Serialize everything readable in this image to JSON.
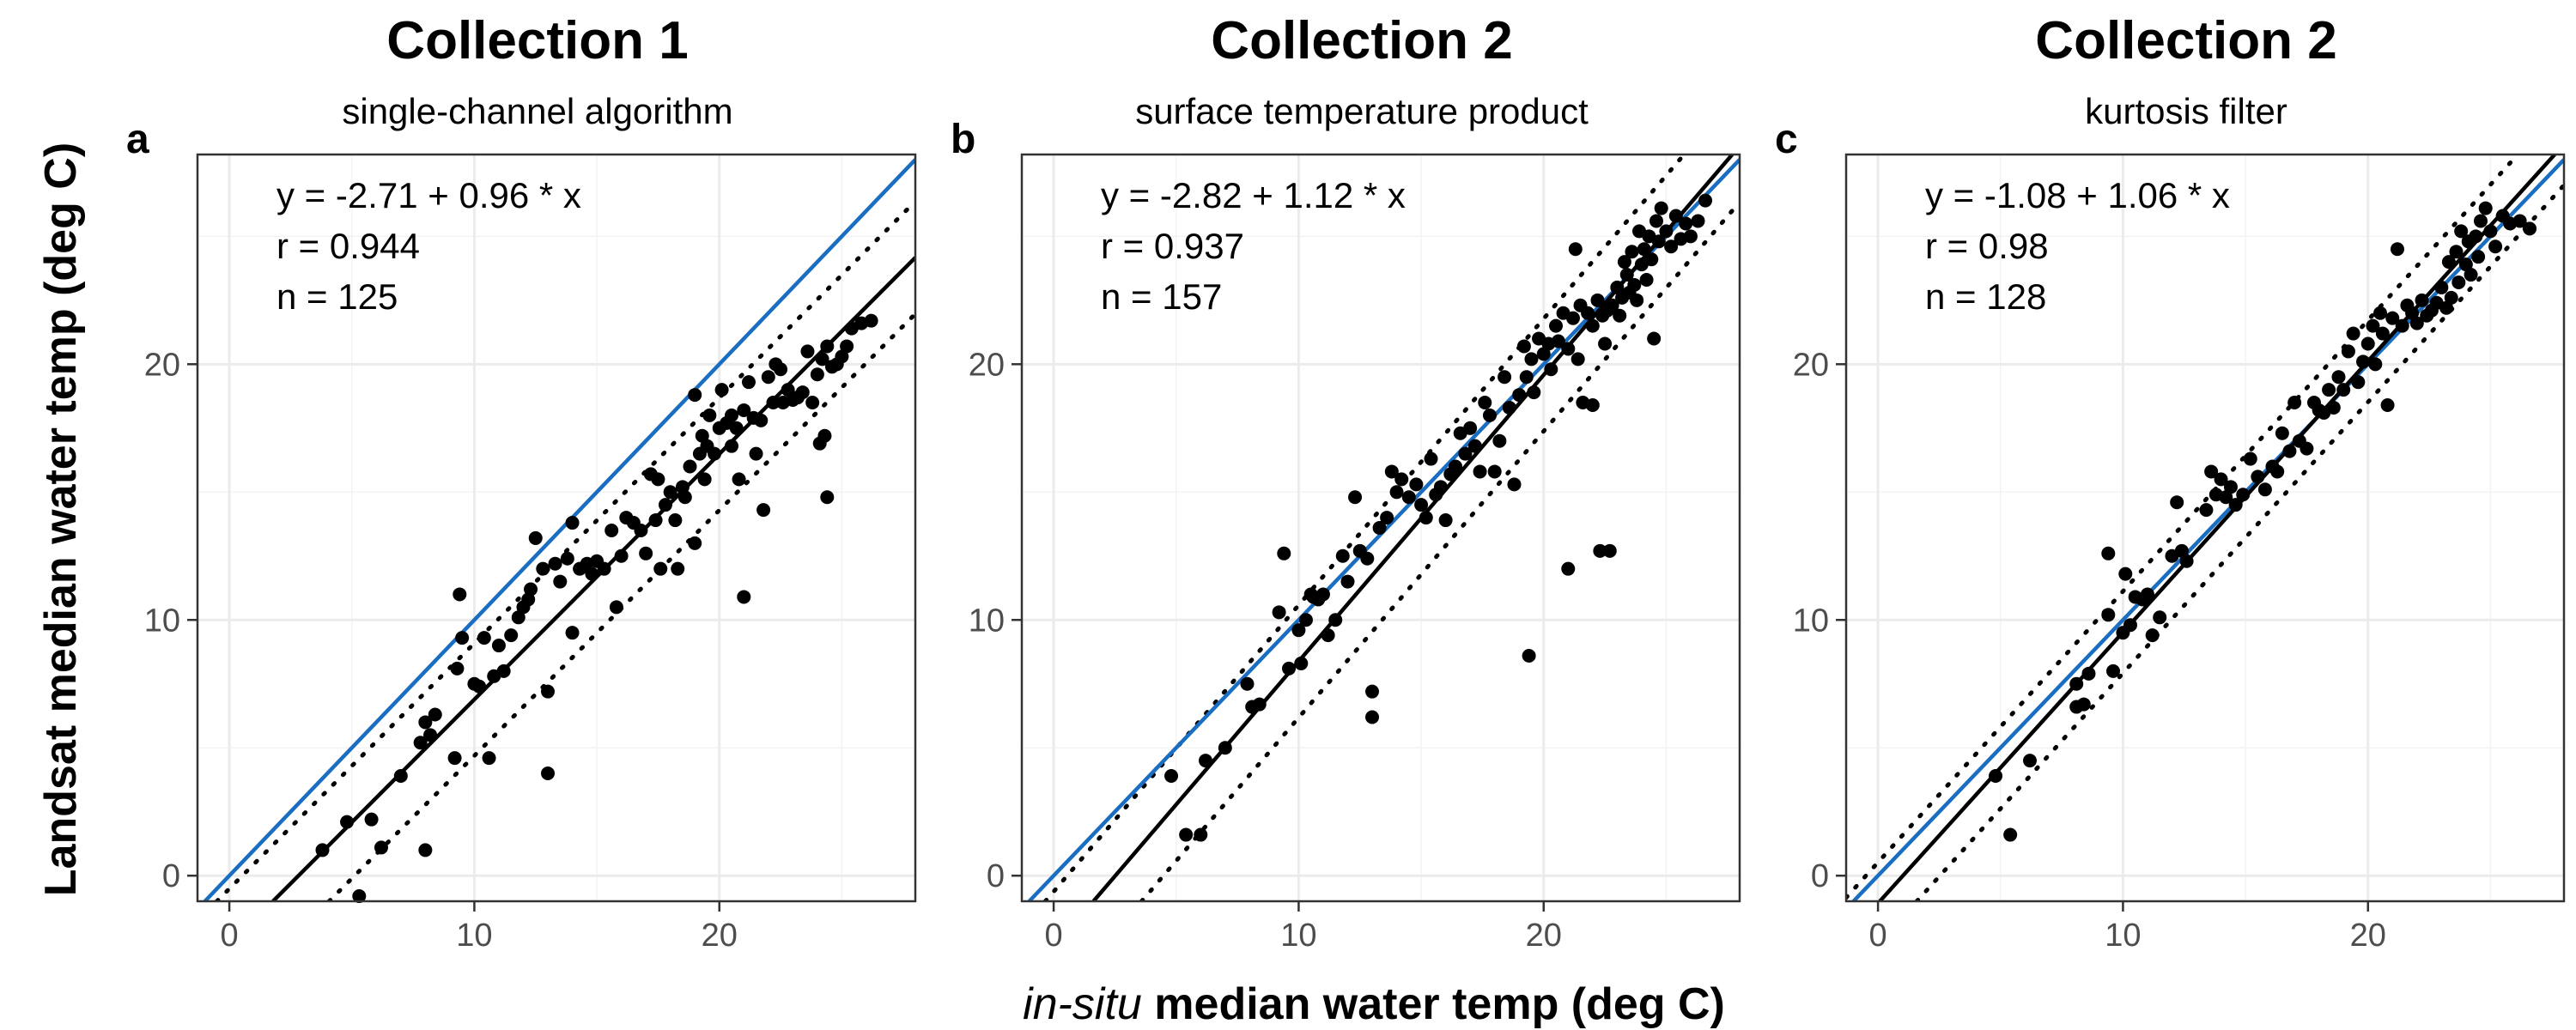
{
  "figure": {
    "xlabel_italic": "in-situ",
    "xlabel_rest": " median water temp (deg C)",
    "ylabel": "Landsat median water temp (deg C)"
  },
  "colors": {
    "identity": "#1a6ec2",
    "fit": "#000000",
    "points": "#000000",
    "grid": "#ebebeb"
  },
  "chart_data": [
    {
      "type": "scatter",
      "title": "Collection 1",
      "subtitle": "single-channel algorithm",
      "panel_label": "a",
      "equation": "y = -2.71 + 0.96 * x",
      "r_text": "r = 0.944",
      "n_text": "n = 125",
      "intercept": -2.71,
      "slope": 0.96,
      "band": 2.2,
      "xlim": [
        -1.3,
        28
      ],
      "ylim": [
        -1,
        28.2
      ],
      "xticks": [
        0,
        10,
        20
      ],
      "yticks": [
        0,
        10,
        20
      ],
      "points": [
        [
          3.8,
          1.0
        ],
        [
          4.8,
          2.1
        ],
        [
          5.3,
          -0.8
        ],
        [
          5.8,
          2.2
        ],
        [
          6.2,
          1.1
        ],
        [
          7.0,
          3.9
        ],
        [
          7.8,
          5.2
        ],
        [
          8.0,
          6.0
        ],
        [
          8.2,
          5.5
        ],
        [
          8.0,
          1.0
        ],
        [
          8.4,
          6.3
        ],
        [
          9.2,
          4.6
        ],
        [
          9.3,
          8.1
        ],
        [
          9.5,
          9.3
        ],
        [
          9.4,
          11.0
        ],
        [
          10.0,
          7.5
        ],
        [
          10.2,
          7.4
        ],
        [
          10.4,
          9.3
        ],
        [
          10.6,
          4.6
        ],
        [
          10.8,
          7.8
        ],
        [
          11.0,
          9.0
        ],
        [
          11.2,
          8.0
        ],
        [
          11.5,
          9.4
        ],
        [
          11.8,
          10.1
        ],
        [
          12.0,
          10.5
        ],
        [
          12.2,
          10.8
        ],
        [
          12.3,
          11.2
        ],
        [
          12.5,
          13.2
        ],
        [
          12.8,
          12.0
        ],
        [
          13.0,
          7.2
        ],
        [
          13.0,
          4.0
        ],
        [
          13.3,
          12.2
        ],
        [
          13.5,
          11.5
        ],
        [
          13.8,
          12.4
        ],
        [
          14.0,
          9.5
        ],
        [
          14.0,
          13.8
        ],
        [
          14.3,
          12.0
        ],
        [
          14.6,
          12.2
        ],
        [
          14.8,
          11.8
        ],
        [
          15.0,
          12.3
        ],
        [
          15.3,
          12.0
        ],
        [
          15.6,
          13.5
        ],
        [
          15.8,
          10.5
        ],
        [
          16.0,
          12.5
        ],
        [
          16.2,
          14.0
        ],
        [
          16.5,
          13.8
        ],
        [
          16.8,
          13.5
        ],
        [
          17.0,
          12.6
        ],
        [
          17.2,
          15.7
        ],
        [
          17.4,
          13.9
        ],
        [
          17.5,
          15.5
        ],
        [
          17.6,
          12.0
        ],
        [
          17.8,
          14.5
        ],
        [
          18.0,
          15.0
        ],
        [
          18.2,
          13.9
        ],
        [
          18.3,
          12.0
        ],
        [
          18.5,
          15.2
        ],
        [
          18.6,
          14.8
        ],
        [
          18.8,
          16.0
        ],
        [
          19.0,
          18.8
        ],
        [
          19.0,
          13.0
        ],
        [
          19.2,
          16.5
        ],
        [
          19.3,
          17.2
        ],
        [
          19.4,
          15.5
        ],
        [
          19.5,
          16.8
        ],
        [
          19.6,
          18.0
        ],
        [
          19.8,
          16.5
        ],
        [
          20.0,
          17.5
        ],
        [
          20.1,
          19.0
        ],
        [
          20.3,
          17.7
        ],
        [
          20.5,
          18.0
        ],
        [
          20.5,
          16.8
        ],
        [
          20.7,
          17.5
        ],
        [
          20.8,
          15.5
        ],
        [
          21.0,
          18.2
        ],
        [
          21.0,
          10.9
        ],
        [
          21.2,
          19.3
        ],
        [
          21.4,
          17.9
        ],
        [
          21.5,
          16.5
        ],
        [
          21.7,
          17.8
        ],
        [
          21.8,
          14.3
        ],
        [
          22.0,
          19.5
        ],
        [
          22.2,
          18.5
        ],
        [
          22.3,
          20.0
        ],
        [
          22.5,
          19.8
        ],
        [
          22.6,
          18.5
        ],
        [
          22.8,
          19.0
        ],
        [
          23.0,
          18.6
        ],
        [
          23.2,
          18.7
        ],
        [
          23.4,
          18.9
        ],
        [
          23.6,
          20.5
        ],
        [
          23.8,
          18.5
        ],
        [
          24.0,
          19.6
        ],
        [
          24.1,
          16.9
        ],
        [
          24.2,
          20.2
        ],
        [
          24.3,
          17.2
        ],
        [
          24.4,
          20.7
        ],
        [
          24.4,
          14.8
        ],
        [
          24.6,
          19.9
        ],
        [
          24.8,
          20.0
        ],
        [
          25.0,
          20.3
        ],
        [
          25.2,
          20.7
        ],
        [
          25.4,
          21.4
        ],
        [
          25.8,
          21.6
        ],
        [
          26.2,
          21.7
        ]
      ]
    },
    {
      "type": "scatter",
      "title": "Collection 2",
      "subtitle": "surface temperature product",
      "panel_label": "b",
      "equation": "y = -2.82 + 1.12 * x",
      "r_text": "r = 0.937",
      "n_text": "n = 157",
      "intercept": -2.82,
      "slope": 1.12,
      "band": 2.2,
      "xlim": [
        -1.3,
        28
      ],
      "ylim": [
        -1,
        28.2
      ],
      "xticks": [
        0,
        10,
        20
      ],
      "yticks": [
        0,
        10,
        20
      ],
      "points": [
        [
          4.8,
          3.9
        ],
        [
          5.4,
          1.6
        ],
        [
          6.0,
          1.6
        ],
        [
          6.2,
          4.5
        ],
        [
          7.0,
          5.0
        ],
        [
          7.9,
          7.5
        ],
        [
          8.1,
          6.6
        ],
        [
          8.4,
          6.7
        ],
        [
          9.2,
          10.3
        ],
        [
          9.4,
          12.6
        ],
        [
          9.6,
          8.1
        ],
        [
          10.0,
          9.6
        ],
        [
          10.1,
          8.3
        ],
        [
          10.3,
          10.0
        ],
        [
          10.5,
          11.0
        ],
        [
          10.6,
          10.9
        ],
        [
          10.8,
          10.8
        ],
        [
          11.0,
          11.0
        ],
        [
          11.2,
          9.4
        ],
        [
          11.5,
          10.0
        ],
        [
          11.8,
          12.5
        ],
        [
          12.0,
          11.5
        ],
        [
          12.3,
          14.8
        ],
        [
          12.5,
          12.7
        ],
        [
          12.8,
          12.4
        ],
        [
          13.0,
          7.2
        ],
        [
          13.0,
          6.2
        ],
        [
          13.3,
          13.6
        ],
        [
          13.6,
          14.0
        ],
        [
          13.8,
          15.8
        ],
        [
          14.0,
          15.0
        ],
        [
          14.2,
          15.5
        ],
        [
          14.5,
          14.8
        ],
        [
          14.8,
          15.3
        ],
        [
          15.0,
          14.5
        ],
        [
          15.2,
          14.0
        ],
        [
          15.4,
          16.3
        ],
        [
          15.6,
          14.9
        ],
        [
          15.8,
          15.2
        ],
        [
          16.0,
          13.9
        ],
        [
          16.2,
          15.7
        ],
        [
          16.4,
          16.0
        ],
        [
          16.6,
          17.3
        ],
        [
          16.8,
          16.5
        ],
        [
          17.0,
          17.5
        ],
        [
          17.2,
          16.8
        ],
        [
          17.4,
          15.8
        ],
        [
          17.6,
          18.5
        ],
        [
          17.8,
          18.0
        ],
        [
          18.0,
          15.8
        ],
        [
          18.2,
          17.0
        ],
        [
          18.4,
          19.5
        ],
        [
          18.6,
          18.3
        ],
        [
          18.8,
          15.3
        ],
        [
          19.0,
          18.8
        ],
        [
          19.2,
          20.7
        ],
        [
          19.3,
          19.5
        ],
        [
          19.4,
          8.6
        ],
        [
          19.5,
          20.2
        ],
        [
          19.6,
          18.9
        ],
        [
          19.8,
          21.0
        ],
        [
          20.0,
          20.4
        ],
        [
          20.2,
          20.8
        ],
        [
          20.3,
          19.8
        ],
        [
          20.5,
          21.5
        ],
        [
          20.6,
          20.9
        ],
        [
          20.8,
          22.0
        ],
        [
          21.0,
          20.6
        ],
        [
          21.0,
          12.0
        ],
        [
          21.2,
          21.8
        ],
        [
          21.3,
          24.5
        ],
        [
          21.4,
          20.2
        ],
        [
          21.5,
          22.3
        ],
        [
          21.6,
          18.5
        ],
        [
          21.8,
          22.0
        ],
        [
          22.0,
          21.5
        ],
        [
          22.0,
          18.4
        ],
        [
          22.2,
          22.5
        ],
        [
          22.3,
          12.7
        ],
        [
          22.4,
          21.9
        ],
        [
          22.5,
          20.8
        ],
        [
          22.6,
          22.1
        ],
        [
          22.7,
          12.7
        ],
        [
          22.8,
          22.3
        ],
        [
          23.0,
          23.0
        ],
        [
          23.1,
          21.9
        ],
        [
          23.2,
          22.6
        ],
        [
          23.3,
          24.0
        ],
        [
          23.4,
          23.5
        ],
        [
          23.5,
          22.8
        ],
        [
          23.6,
          24.4
        ],
        [
          23.7,
          23.1
        ],
        [
          23.8,
          22.5
        ],
        [
          23.9,
          25.2
        ],
        [
          24.0,
          23.9
        ],
        [
          24.1,
          24.5
        ],
        [
          24.2,
          23.3
        ],
        [
          24.3,
          25.0
        ],
        [
          24.4,
          24.1
        ],
        [
          24.5,
          21.0
        ],
        [
          24.6,
          25.6
        ],
        [
          24.7,
          24.8
        ],
        [
          24.8,
          26.1
        ],
        [
          25.0,
          25.2
        ],
        [
          25.2,
          24.6
        ],
        [
          25.4,
          25.8
        ],
        [
          25.6,
          24.9
        ],
        [
          25.8,
          25.5
        ],
        [
          26.0,
          25.0
        ],
        [
          26.3,
          25.6
        ],
        [
          26.6,
          26.4
        ]
      ]
    },
    {
      "type": "scatter",
      "title": "Collection 2",
      "subtitle": "kurtosis filter",
      "panel_label": "c",
      "equation": "y = -1.08 + 1.06 * x",
      "r_text": "r = 0.98",
      "n_text": "n = 128",
      "intercept": -1.08,
      "slope": 1.06,
      "band": 1.6,
      "xlim": [
        -1.3,
        28
      ],
      "ylim": [
        -1,
        28.2
      ],
      "xticks": [
        0,
        10,
        20
      ],
      "yticks": [
        0,
        10,
        20
      ],
      "points": [
        [
          4.8,
          3.9
        ],
        [
          5.4,
          1.6
        ],
        [
          6.2,
          4.5
        ],
        [
          8.1,
          7.5
        ],
        [
          8.1,
          6.6
        ],
        [
          8.4,
          6.7
        ],
        [
          8.6,
          7.9
        ],
        [
          9.4,
          12.6
        ],
        [
          9.4,
          10.2
        ],
        [
          9.6,
          8.0
        ],
        [
          10.0,
          9.5
        ],
        [
          10.1,
          11.8
        ],
        [
          10.3,
          9.8
        ],
        [
          10.5,
          10.9
        ],
        [
          10.8,
          10.8
        ],
        [
          11.0,
          11.0
        ],
        [
          11.2,
          9.4
        ],
        [
          11.5,
          10.1
        ],
        [
          12.0,
          12.5
        ],
        [
          12.2,
          14.6
        ],
        [
          12.4,
          12.7
        ],
        [
          12.6,
          12.3
        ],
        [
          13.4,
          14.3
        ],
        [
          13.6,
          15.8
        ],
        [
          13.8,
          14.9
        ],
        [
          14.0,
          15.5
        ],
        [
          14.2,
          14.8
        ],
        [
          14.4,
          15.2
        ],
        [
          14.6,
          14.5
        ],
        [
          14.9,
          14.9
        ],
        [
          15.2,
          16.3
        ],
        [
          15.5,
          15.6
        ],
        [
          15.8,
          15.1
        ],
        [
          16.1,
          16.0
        ],
        [
          16.3,
          15.8
        ],
        [
          16.5,
          17.3
        ],
        [
          16.8,
          16.6
        ],
        [
          17.0,
          18.5
        ],
        [
          17.2,
          17.0
        ],
        [
          17.5,
          16.7
        ],
        [
          17.8,
          18.5
        ],
        [
          18.0,
          18.2
        ],
        [
          18.2,
          18.1
        ],
        [
          18.4,
          19.0
        ],
        [
          18.6,
          18.3
        ],
        [
          18.8,
          19.5
        ],
        [
          19.0,
          19.0
        ],
        [
          19.2,
          20.5
        ],
        [
          19.4,
          21.2
        ],
        [
          19.6,
          19.3
        ],
        [
          19.8,
          20.1
        ],
        [
          20.0,
          20.8
        ],
        [
          20.2,
          21.5
        ],
        [
          20.3,
          20.0
        ],
        [
          20.5,
          22.0
        ],
        [
          20.6,
          21.2
        ],
        [
          20.8,
          18.4
        ],
        [
          21.0,
          21.8
        ],
        [
          21.2,
          24.5
        ],
        [
          21.4,
          21.5
        ],
        [
          21.6,
          22.3
        ],
        [
          21.8,
          22.0
        ],
        [
          22.0,
          21.6
        ],
        [
          22.2,
          22.5
        ],
        [
          22.4,
          21.9
        ],
        [
          22.6,
          22.1
        ],
        [
          22.8,
          22.4
        ],
        [
          23.0,
          23.0
        ],
        [
          23.2,
          22.2
        ],
        [
          23.3,
          24.0
        ],
        [
          23.4,
          22.6
        ],
        [
          23.6,
          24.4
        ],
        [
          23.7,
          23.2
        ],
        [
          23.8,
          25.2
        ],
        [
          24.0,
          23.9
        ],
        [
          24.1,
          24.8
        ],
        [
          24.2,
          23.5
        ],
        [
          24.4,
          25.0
        ],
        [
          24.5,
          24.2
        ],
        [
          24.6,
          25.6
        ],
        [
          24.8,
          26.1
        ],
        [
          25.0,
          25.2
        ],
        [
          25.2,
          24.6
        ],
        [
          25.5,
          25.8
        ],
        [
          25.8,
          25.5
        ],
        [
          26.2,
          25.6
        ],
        [
          26.6,
          25.3
        ]
      ]
    }
  ]
}
